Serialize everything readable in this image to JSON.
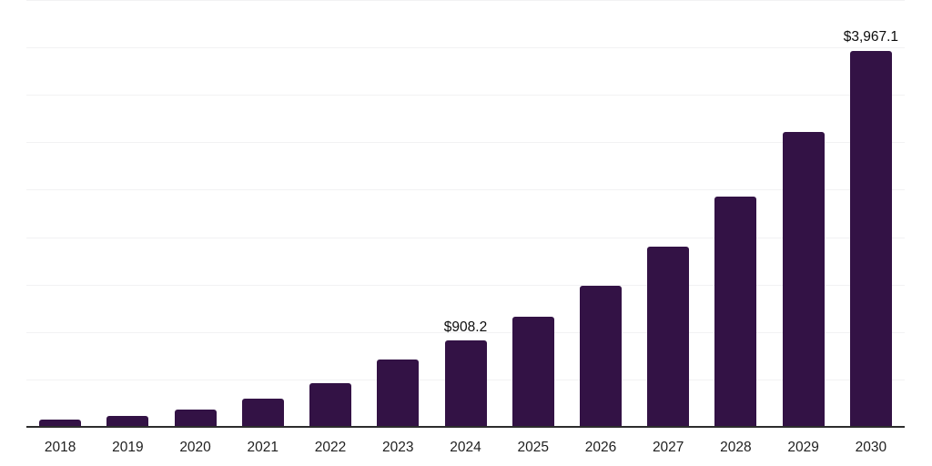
{
  "chart_data": {
    "type": "bar",
    "title": "",
    "xlabel": "",
    "ylabel": "",
    "categories": [
      "2018",
      "2019",
      "2020",
      "2021",
      "2022",
      "2023",
      "2024",
      "2025",
      "2026",
      "2027",
      "2028",
      "2029",
      "2030"
    ],
    "values": [
      73,
      118,
      186,
      293,
      458,
      710,
      908.2,
      1161,
      1485,
      1899,
      2429,
      3106,
      3967.1
    ],
    "value_labels": [
      null,
      null,
      null,
      null,
      null,
      null,
      "$908.2",
      null,
      null,
      null,
      null,
      null,
      "$3,967.1"
    ],
    "currency_prefix": "$",
    "ylim": [
      0,
      4500
    ],
    "gridline_interval": 500,
    "grid": "horizontal-light",
    "legend_position": "none",
    "colors": {
      "bar": "#331245",
      "axis_line": "#2d2d2d",
      "gridline": "#f2f2f3",
      "tick_label": "#1f1f1f",
      "data_label": "#0c0c0c",
      "background": "#ffffff"
    }
  }
}
